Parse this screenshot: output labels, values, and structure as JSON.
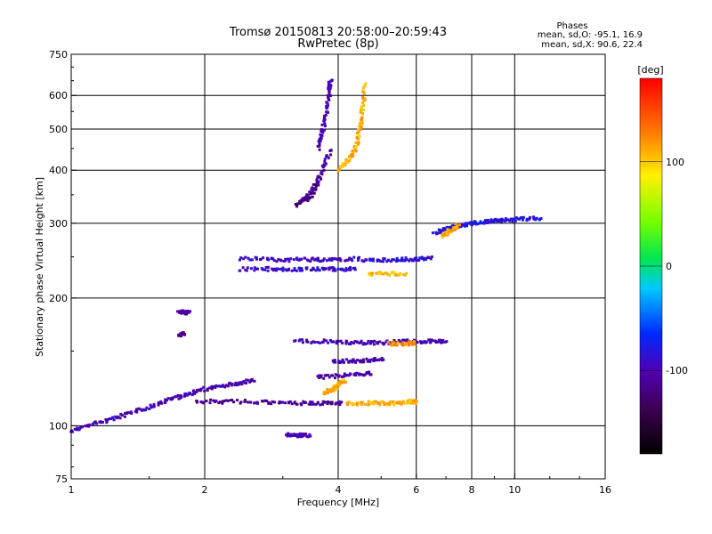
{
  "chart_data": {
    "type": "scatter",
    "title": "Tromsø 20150813 20:58:00–20:59:43",
    "subtitle": "RwPretec (8p)",
    "xlabel": "Frequency [MHz]",
    "ylabel": "Stationary phase Virtual Height [km]",
    "x_scale": "log",
    "y_scale": "log",
    "xlim": [
      1,
      16
    ],
    "ylim": [
      75,
      750
    ],
    "x_ticks": [
      1,
      2,
      4,
      6,
      8,
      10,
      16
    ],
    "x_grid": [
      2,
      4,
      6,
      8,
      10
    ],
    "y_ticks": [
      75,
      100,
      200,
      300,
      400,
      500,
      600,
      750
    ],
    "y_grid": [
      100,
      200,
      300,
      400,
      500,
      600
    ],
    "grid": true,
    "colorbar": {
      "label": "[deg]",
      "range": [
        -180,
        180
      ],
      "ticks": [
        100,
        0,
        -100
      ]
    },
    "stats": {
      "heading": "Phases",
      "line_o": "mean, sd,O: -95.1, 16.9",
      "line_x": "mean, sd,X:  90.6, 22.4"
    },
    "traces": [
      {
        "x": [
          1.0,
          1.12,
          1.25,
          1.4,
          1.55,
          1.7,
          1.85,
          2.0,
          2.2,
          2.4,
          2.6
        ],
        "y": [
          97,
          101,
          104,
          108,
          112,
          116,
          119,
          122,
          124,
          126,
          128
        ],
        "phase": -100
      },
      {
        "x": [
          1.9,
          2.2,
          2.6,
          3.0,
          3.4,
          3.8,
          4.1
        ],
        "y": [
          114,
          114,
          114,
          113,
          113,
          113,
          113
        ],
        "phase": -110
      },
      {
        "x": [
          4.2,
          4.6,
          5.0,
          5.4,
          5.8,
          6.0
        ],
        "y": [
          113,
          113,
          113,
          113,
          114,
          114
        ],
        "phase": 110
      },
      {
        "x": [
          3.3,
          3.5,
          3.7,
          3.85
        ],
        "y": [
          335,
          360,
          400,
          450
        ],
        "phase": -105
      },
      {
        "x": [
          3.6,
          3.7,
          3.78,
          3.82,
          3.85
        ],
        "y": [
          450,
          500,
          560,
          620,
          650
        ],
        "phase": -100
      },
      {
        "x": [
          3.2,
          3.45,
          3.65
        ],
        "y": [
          330,
          345,
          380
        ],
        "phase": -120
      },
      {
        "x": [
          4.0,
          4.2,
          4.38,
          4.48,
          4.55,
          4.6
        ],
        "y": [
          400,
          420,
          450,
          500,
          560,
          640
        ],
        "phase": 110
      },
      {
        "x": [
          2.4,
          2.8,
          3.2,
          3.6,
          4.0,
          4.5
        ],
        "y": [
          248,
          246,
          246,
          246,
          247,
          247
        ],
        "phase": -95
      },
      {
        "x": [
          2.4,
          2.8,
          3.2,
          3.6,
          4.0,
          4.4
        ],
        "y": [
          234,
          234,
          234,
          234,
          234,
          234
        ],
        "phase": -90
      },
      {
        "x": [
          4.5,
          5.0,
          5.5,
          6.0,
          6.5
        ],
        "y": [
          246,
          246,
          246,
          247,
          248
        ],
        "phase": -85
      },
      {
        "x": [
          4.7,
          5.2,
          5.7
        ],
        "y": [
          228,
          228,
          228
        ],
        "phase": 105
      },
      {
        "x": [
          6.6,
          7.0,
          7.5,
          8.0,
          8.5,
          9.0,
          9.5,
          10.5,
          11.5
        ],
        "y": [
          285,
          290,
          296,
          300,
          302,
          304,
          305,
          307,
          308
        ],
        "phase": -80
      },
      {
        "x": [
          6.9,
          7.2,
          7.5
        ],
        "y": [
          280,
          290,
          297
        ],
        "phase": 115
      },
      {
        "x": [
          3.2,
          3.7,
          4.2,
          4.7,
          5.2,
          5.7,
          6.2,
          6.7,
          7.0
        ],
        "y": [
          158,
          158,
          157,
          157,
          157,
          158,
          158,
          158,
          158
        ],
        "phase": -100
      },
      {
        "x": [
          5.2,
          5.7,
          6.0
        ],
        "y": [
          156,
          156,
          157
        ],
        "phase": 120
      },
      {
        "x": [
          1.75,
          1.8,
          1.85
        ],
        "y": [
          185,
          185,
          185
        ],
        "phase": -110
      },
      {
        "x": [
          1.75,
          1.8
        ],
        "y": [
          164,
          165
        ],
        "phase": -115
      },
      {
        "x": [
          3.05,
          3.25,
          3.45
        ],
        "y": [
          95,
          95,
          95
        ],
        "phase": -100
      },
      {
        "x": [
          3.6,
          4.0,
          4.4,
          4.8
        ],
        "y": [
          130,
          131,
          132,
          133
        ],
        "phase": -105
      },
      {
        "x": [
          3.9,
          4.3,
          4.7,
          5.1
        ],
        "y": [
          142,
          142,
          143,
          143
        ],
        "phase": -100
      },
      {
        "x": [
          3.7,
          3.9,
          4.0,
          4.15
        ],
        "y": [
          119,
          122,
          125,
          128
        ],
        "phase": 110
      }
    ]
  }
}
